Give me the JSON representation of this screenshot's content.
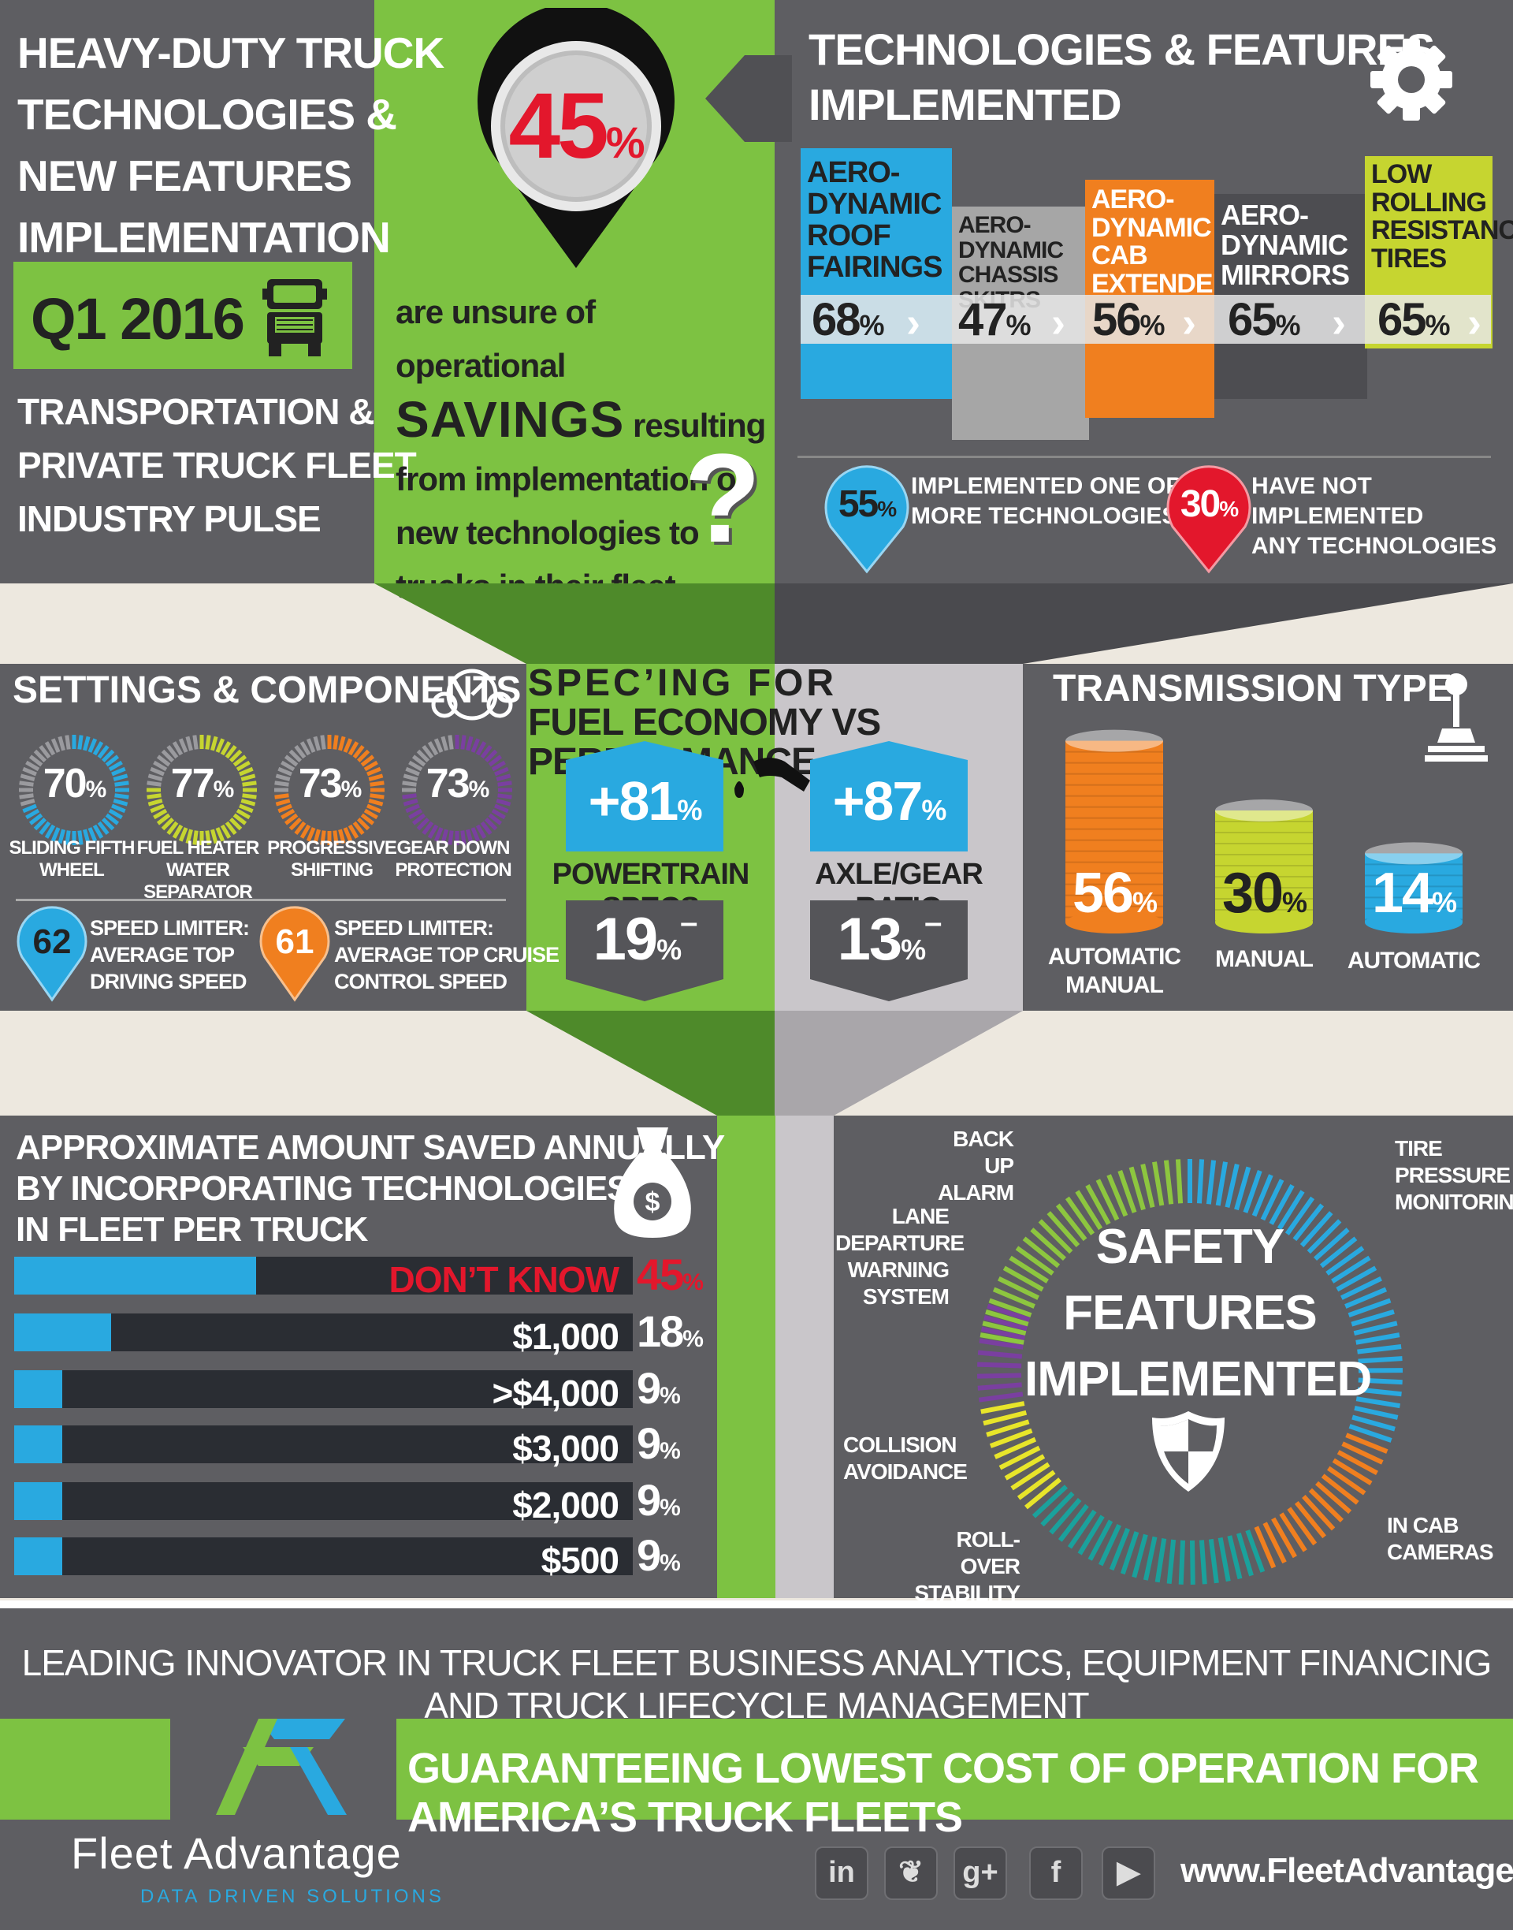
{
  "header": {
    "title_lines": [
      "HEAVY-DUTY TRUCK",
      "TECHNOLOGIES &",
      "NEW FEATURES",
      "IMPLEMENTATION"
    ],
    "period": "Q1 2016",
    "subtitle_lines": [
      "TRANSPORTATION &",
      "PRIVATE TRUCK FLEET",
      "INDUSTRY PULSE"
    ]
  },
  "unsure": {
    "pct": "45",
    "pct_unit": "%",
    "line1": "are unsure of operational",
    "savings": "SAVINGS",
    "resulting": "resulting",
    "line3": "from implementation of",
    "line4": "new technologies to",
    "line5": "trucks in their fleet",
    "question": "?"
  },
  "technologies": {
    "title_lines": [
      "TECHNOLOGIES & FEATURES",
      "IMPLEMENTED"
    ],
    "items": [
      {
        "label_lines": [
          "AERO-",
          "DYNAMIC",
          "ROOF",
          "FAIRINGS"
        ],
        "pct": "68",
        "color": "#29a9e0",
        "label_color": "#222222"
      },
      {
        "label_lines": [
          "AERO-",
          "DYNAMIC",
          "CHASSIS SKITRS"
        ],
        "pct": "47",
        "color": "#a6a6a6",
        "label_color": "#222222"
      },
      {
        "label_lines": [
          "AERO-",
          "DYNAMIC",
          "CAB",
          "EXTENDERS"
        ],
        "pct": "56",
        "color": "#f07f1f",
        "label_color": "#ffffff"
      },
      {
        "label_lines": [
          "AERO-",
          "DYNAMIC",
          "MIRRORS"
        ],
        "pct": "65",
        "color": "#4d4d51",
        "label_color": "#ffffff"
      },
      {
        "label_lines": [
          "LOW",
          "ROLLING",
          "RESISTANCE",
          "TIRES"
        ],
        "pct": "65",
        "color": "#c6d530",
        "label_color": "#222222"
      }
    ],
    "unit": "%",
    "implemented": {
      "pct": "55",
      "unit": "%",
      "lines": [
        "IMPLEMENTED ONE OR",
        "MORE TECHNOLOGIES"
      ],
      "color": "#29a9e0"
    },
    "not_implemented": {
      "pct": "30",
      "unit": "%",
      "lines": [
        "HAVE NOT IMPLEMENTED",
        "ANY TECHNOLOGIES"
      ],
      "color": "#e3172c"
    }
  },
  "settings": {
    "title": "SETTINGS & COMPONENTS",
    "rings": [
      {
        "pct": "70",
        "label_lines": [
          "SLIDING FIFTH",
          "WHEEL"
        ],
        "color": "#29a9e0",
        "value": 70
      },
      {
        "pct": "77",
        "label_lines": [
          "FUEL HEATER",
          "WATER SEPARATOR"
        ],
        "color": "#c6d530",
        "value": 77
      },
      {
        "pct": "73",
        "label_lines": [
          "PROGRESSIVE",
          "SHIFTING"
        ],
        "color": "#f07f1f",
        "value": 73
      },
      {
        "pct": "73",
        "label_lines": [
          "GEAR DOWN",
          "PROTECTION"
        ],
        "color": "#7a3fa0",
        "value": 73
      }
    ],
    "unit": "%",
    "limiter1": {
      "value": "62",
      "lines": [
        "SPEED LIMITER:",
        "AVERAGE TOP",
        "DRIVING SPEED"
      ],
      "color": "#29a9e0"
    },
    "limiter2": {
      "value": "61",
      "lines": [
        "SPEED LIMITER:",
        "AVERAGE TOP CRUISE",
        "CONTROL SPEED"
      ],
      "color": "#f07f1f"
    }
  },
  "specing": {
    "title_lines": [
      "SPEC’ING FOR",
      "FUEL ECONOMY VS PERFORMANCE"
    ],
    "left": {
      "plus": "+81",
      "label": "POWERTRAIN SPECS",
      "minus": "19"
    },
    "right": {
      "plus": "+87",
      "label": "AXLE/GEAR RATIO",
      "minus": "13"
    },
    "unit": "%",
    "minus_sign": "–"
  },
  "transmission": {
    "title": "TRANSMISSION TYPE",
    "items": [
      {
        "pct": "56",
        "label_lines": [
          "AUTOMATIC",
          "MANUAL"
        ],
        "color": "#f07f1f",
        "value": 56
      },
      {
        "pct": "30",
        "label_lines": [
          "MANUAL"
        ],
        "color": "#c6d530",
        "value": 30
      },
      {
        "pct": "14",
        "label_lines": [
          "AUTOMATIC"
        ],
        "color": "#29a9e0",
        "value": 14
      }
    ],
    "unit": "%"
  },
  "savings": {
    "title_lines": [
      "APPROXIMATE AMOUNT SAVED ANNUALLY",
      "BY INCORPORATING TECHNOLOGIES",
      "IN FLEET PER TRUCK"
    ],
    "rows": [
      {
        "label": "DON’T KNOW",
        "pct": "45",
        "value": 45,
        "highlight": true
      },
      {
        "label": "$1,000",
        "pct": "18",
        "value": 18,
        "highlight": false
      },
      {
        "label": ">$4,000",
        "pct": "9",
        "value": 9,
        "highlight": false
      },
      {
        "label": "$3,000",
        "pct": "9",
        "value": 9,
        "highlight": false
      },
      {
        "label": "$2,000",
        "pct": "9",
        "value": 9,
        "highlight": false
      },
      {
        "label": "$500",
        "pct": "9",
        "value": 9,
        "highlight": false
      }
    ],
    "unit": "%",
    "highlight_color": "#e3172c"
  },
  "safety": {
    "title_lines": [
      "SAFETY",
      "FEATURES",
      "IMPLEMENTED"
    ],
    "features": [
      {
        "label_lines": [
          "BACK UP",
          "ALARM"
        ],
        "color": "#8dc63f"
      },
      {
        "label_lines": [
          "TIRE",
          "PRESSURE",
          "MONITORING"
        ],
        "color": "#29a9e0"
      },
      {
        "label_lines": [
          "IN CAB",
          "CAMERAS"
        ],
        "color": "#f07f1f"
      },
      {
        "label_lines": [
          "ROLL-OVER",
          "STABILITY"
        ],
        "color": "#1aa19c"
      },
      {
        "label_lines": [
          "COLLISION",
          "AVOIDANCE"
        ],
        "color": "#e8e52a"
      },
      {
        "label_lines": [
          "LANE",
          "DEPARTURE",
          "WARNING",
          "SYSTEM"
        ],
        "color": "#7a3fa0"
      }
    ]
  },
  "footer": {
    "tagline": "LEADING INNOVATOR IN TRUCK FLEET BUSINESS ANALYTICS, EQUIPMENT FINANCING AND TRUCK LIFECYCLE MANAGEMENT",
    "banner": "GUARANTEEING LOWEST COST OF OPERATION FOR AMERICA’S TRUCK FLEETS",
    "brand": "Fleet Advantage",
    "brand_sub": "DATA DRIVEN SOLUTIONS",
    "social": [
      "in",
      "❦",
      "g+",
      "f",
      "▶"
    ],
    "website": "www.FleetAdvantage.net"
  }
}
